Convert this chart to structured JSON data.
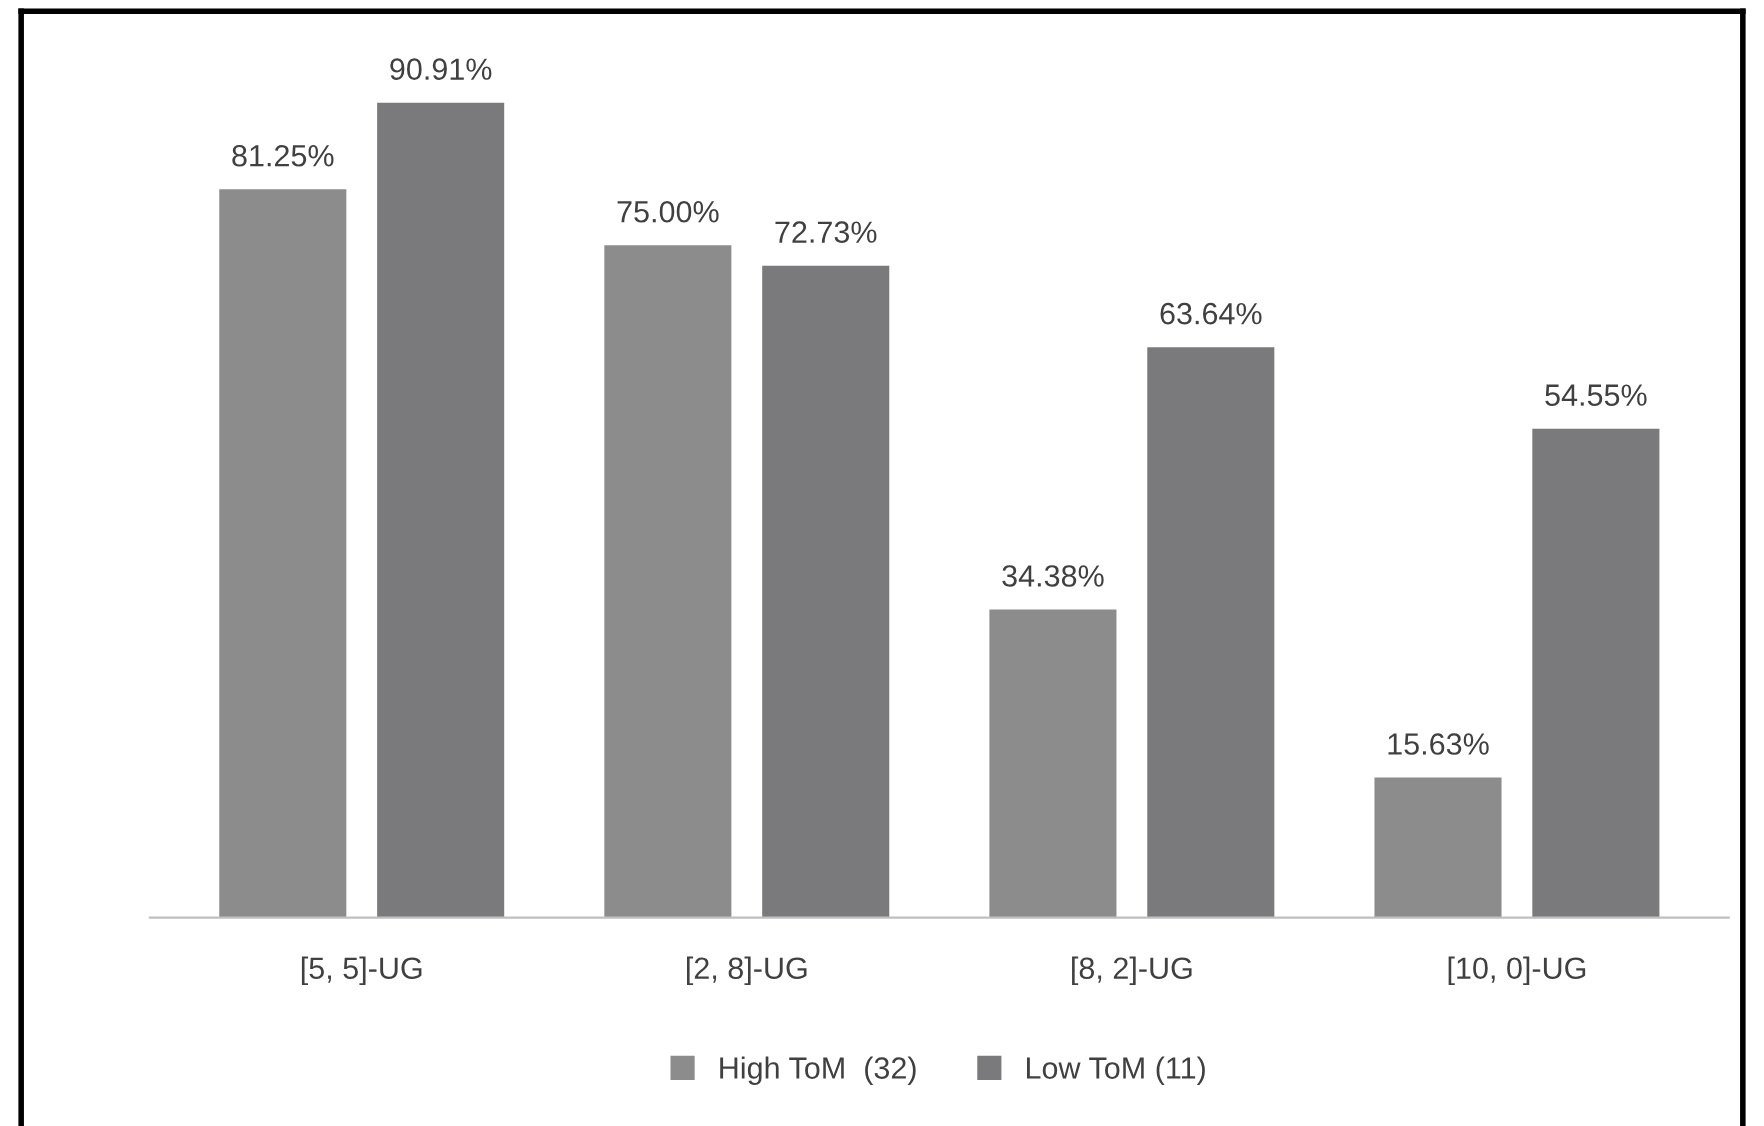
{
  "chart_data": {
    "type": "bar",
    "categories": [
      "[5, 5]-UG",
      "[2, 8]-UG",
      "[8, 2]-UG",
      "[10, 0]-UG"
    ],
    "series": [
      {
        "name": "High ToM  (32)",
        "color": "#8c8c8c",
        "values": [
          81.25,
          75.0,
          34.38,
          15.63
        ],
        "value_labels": [
          "81.25%",
          "75.00%",
          "34.38%",
          "15.63%"
        ]
      },
      {
        "name": "Low ToM (11)",
        "color": "#7a7a7c",
        "values": [
          90.91,
          72.73,
          63.64,
          54.55
        ],
        "value_labels": [
          "90.91%",
          "72.73%",
          "63.64%",
          "54.55%"
        ]
      }
    ],
    "legend": "bottom",
    "grid": false,
    "tick_labels": "x"
  }
}
